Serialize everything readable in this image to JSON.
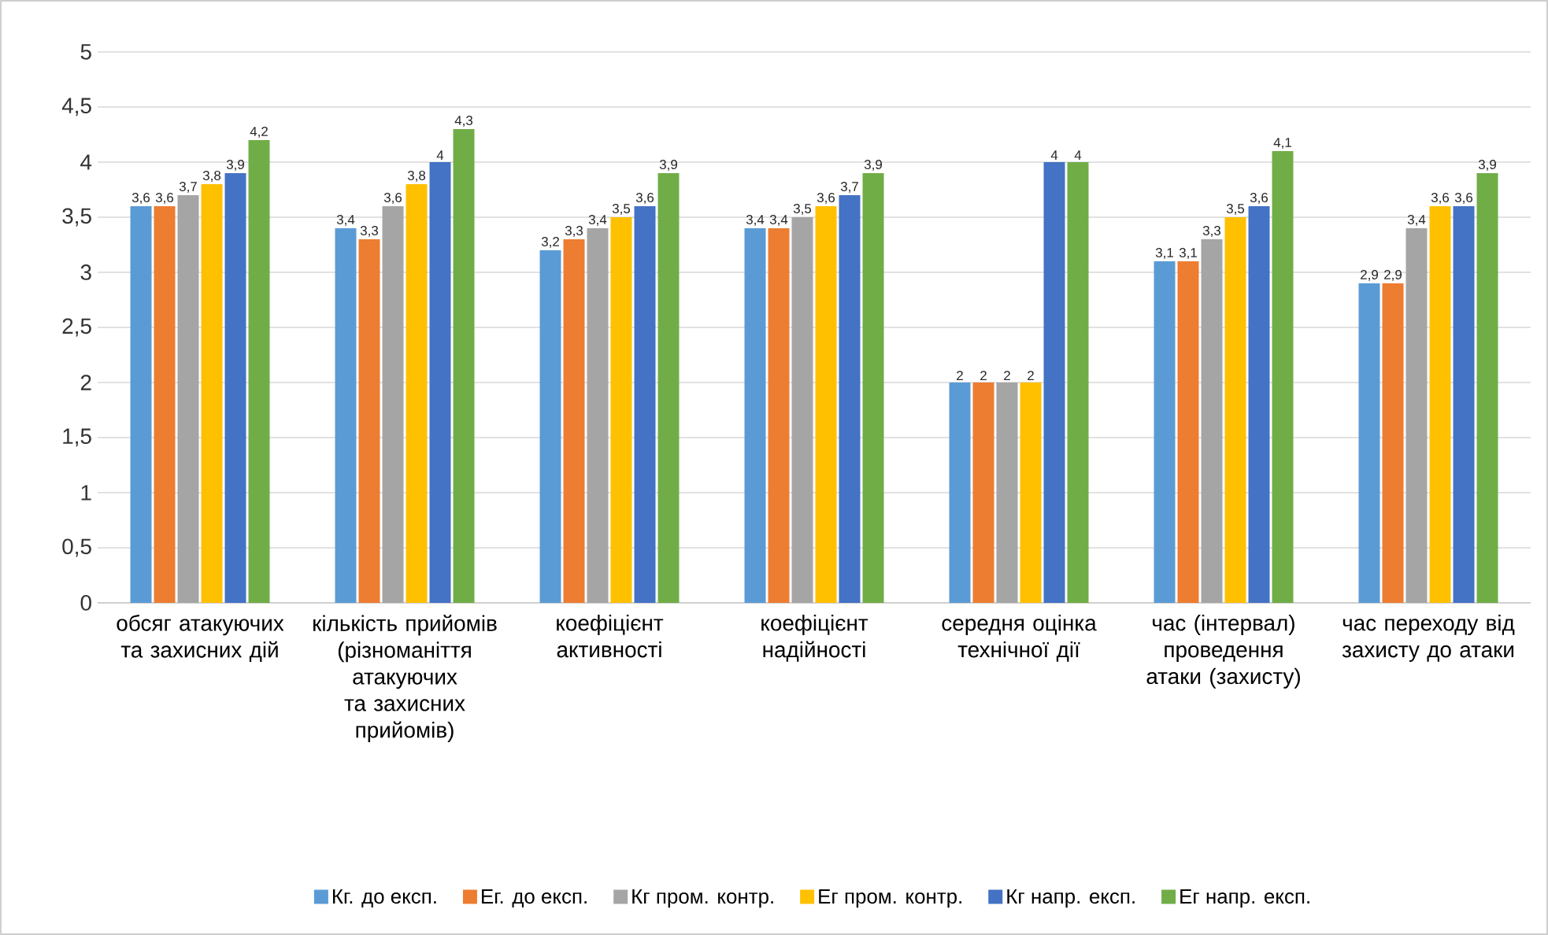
{
  "chart_data": {
    "type": "bar",
    "categories": [
      "обсяг атакуючих та захисних дій",
      "кількість прийомів (різноманіття атакуючих та захисних прийомів)",
      "коефіцієнт активності",
      "коефіцієнт надійності",
      "середня оцінка технічної дії",
      "час (інтервал) проведення атаки (захисту)",
      "час переходу від захисту до атаки"
    ],
    "series": [
      {
        "name": "Кг. до експ.",
        "color": "#5b9bd5",
        "values": [
          3.6,
          3.4,
          3.2,
          3.4,
          2,
          3.1,
          2.9
        ],
        "value_labels": [
          "3,6",
          "3,4",
          "3,2",
          "3,4",
          "2",
          "3,1",
          "2,9"
        ]
      },
      {
        "name": "Ег. до експ.",
        "color": "#ed7d31",
        "values": [
          3.6,
          3.3,
          3.3,
          3.4,
          2,
          3.1,
          2.9
        ],
        "value_labels": [
          "3,6",
          "3,3",
          "3,3",
          "3,4",
          "2",
          "3,1",
          "2,9"
        ]
      },
      {
        "name": "Кг пром. контр.",
        "color": "#a5a5a5",
        "values": [
          3.7,
          3.6,
          3.4,
          3.5,
          2,
          3.3,
          3.4
        ],
        "value_labels": [
          "3,7",
          "3,6",
          "3,4",
          "3,5",
          "2",
          "3,3",
          "3,4"
        ]
      },
      {
        "name": "Ег пром. контр.",
        "color": "#ffc000",
        "values": [
          3.8,
          3.8,
          3.5,
          3.6,
          2,
          3.5,
          3.6
        ],
        "value_labels": [
          "3,8",
          "3,8",
          "3,5",
          "3,6",
          "2",
          "3,5",
          "3,6"
        ]
      },
      {
        "name": "Кг напр. експ.",
        "color": "#4472c4",
        "values": [
          3.9,
          4,
          3.6,
          3.7,
          4,
          3.6,
          3.6
        ],
        "value_labels": [
          "3,9",
          "4",
          "3,6",
          "3,7",
          "4",
          "3,6",
          "3,6"
        ]
      },
      {
        "name": "Ег напр. експ.",
        "color": "#70ad47",
        "values": [
          4.2,
          4.3,
          3.9,
          3.9,
          4,
          4.1,
          3.9
        ],
        "value_labels": [
          "4,2",
          "4,3",
          "3,9",
          "3,9",
          "4",
          "4,1",
          "3,9"
        ]
      }
    ],
    "ylim": [
      0,
      5
    ],
    "yticks": [
      0,
      {
        "value": 0.5,
        "label": "0,5"
      },
      1,
      {
        "value": 1.5,
        "label": "1,5"
      },
      2,
      {
        "value": 2.5,
        "label": "2,5"
      },
      3,
      {
        "value": 3.5,
        "label": "3,5"
      },
      4,
      {
        "value": 4.5,
        "label": "4,5"
      },
      5
    ],
    "grid": "y",
    "legend": "bottom"
  }
}
